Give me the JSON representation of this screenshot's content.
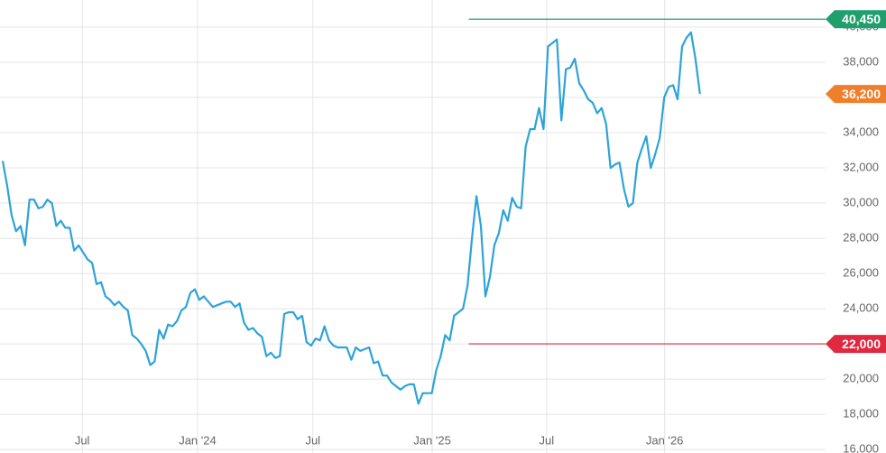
{
  "chart_data": {
    "type": "line",
    "values": [
      32400,
      31000,
      29300,
      28400,
      28700,
      27600,
      30200,
      30200,
      29700,
      29800,
      30200,
      30000,
      28700,
      29000,
      28600,
      28600,
      27300,
      27600,
      27200,
      26800,
      26600,
      25400,
      25500,
      24700,
      24500,
      24200,
      24400,
      24100,
      23900,
      22500,
      22300,
      22000,
      21600,
      20800,
      21000,
      22800,
      22300,
      23100,
      23000,
      23300,
      23900,
      24100,
      24900,
      25100,
      24500,
      24700,
      24400,
      24100,
      24200,
      24300,
      24400,
      24400,
      24100,
      24300,
      23200,
      22800,
      22900,
      22600,
      22400,
      21300,
      21500,
      21200,
      21300,
      23700,
      23800,
      23800,
      23400,
      23600,
      22100,
      21900,
      22300,
      22200,
      23000,
      22200,
      21900,
      21800,
      21800,
      21800,
      21100,
      21800,
      21600,
      21700,
      21800,
      20900,
      21000,
      20200,
      20200,
      19800,
      19600,
      19400,
      19600,
      19700,
      19700,
      18600,
      19200,
      19200,
      19200,
      20500,
      21300,
      22500,
      22200,
      23600,
      23800,
      24000,
      25300,
      28000,
      30400,
      28700,
      24700,
      25800,
      27600,
      28300,
      29600,
      29000,
      30300,
      29800,
      29700,
      33200,
      34200,
      34200,
      35400,
      34200,
      38900,
      39100,
      39300,
      34700,
      37600,
      37700,
      38200,
      36800,
      36400,
      35900,
      35700,
      35100,
      35400,
      34500,
      32000,
      32200,
      32300,
      30800,
      29800,
      30000,
      32300,
      33100,
      33800,
      32000,
      32800,
      33700,
      36000,
      36600,
      36700,
      35900,
      38900,
      39400,
      39700,
      38200,
      36200
    ],
    "color": "#2ea3d8",
    "xlim": [
      -0.6,
      184.1
    ],
    "xticks": [
      {
        "value": 17.8,
        "label": "Jul"
      },
      {
        "value": 43.6,
        "label": "Jan '24"
      },
      {
        "value": 69.4,
        "label": "Jul"
      },
      {
        "value": 96.1,
        "label": "Jan '25"
      },
      {
        "value": 121.7,
        "label": "Jul"
      },
      {
        "value": 148.1,
        "label": "Jan '26"
      }
    ],
    "ylim": [
      15800,
      41540
    ],
    "yticks": [
      {
        "value": 16000,
        "label": "16,000"
      },
      {
        "value": 18000,
        "label": "18,000"
      },
      {
        "value": 20000,
        "label": "20,000"
      },
      {
        "value": 22000,
        "label": "22,000"
      },
      {
        "value": 24000,
        "label": "24,000"
      },
      {
        "value": 26000,
        "label": "26,000"
      },
      {
        "value": 28000,
        "label": "28,000"
      },
      {
        "value": 30000,
        "label": "30,000"
      },
      {
        "value": 32000,
        "label": "32,000"
      },
      {
        "value": 34000,
        "label": "34,000"
      },
      {
        "value": 36000,
        "label": "36,000"
      },
      {
        "value": 38000,
        "label": "38,000"
      },
      {
        "value": 40000,
        "label": "40,000"
      }
    ],
    "grid": true,
    "reference_lines": [
      {
        "value": 40450,
        "label": "40,450",
        "color": "#1f9e6e",
        "from_x": 104.3
      },
      {
        "value": 22000,
        "label": "22,000",
        "color": "#e0283f",
        "from_x": 104.3
      }
    ],
    "last_price": {
      "value": 36200,
      "label": "36,200",
      "color": "#f07f2c"
    }
  }
}
